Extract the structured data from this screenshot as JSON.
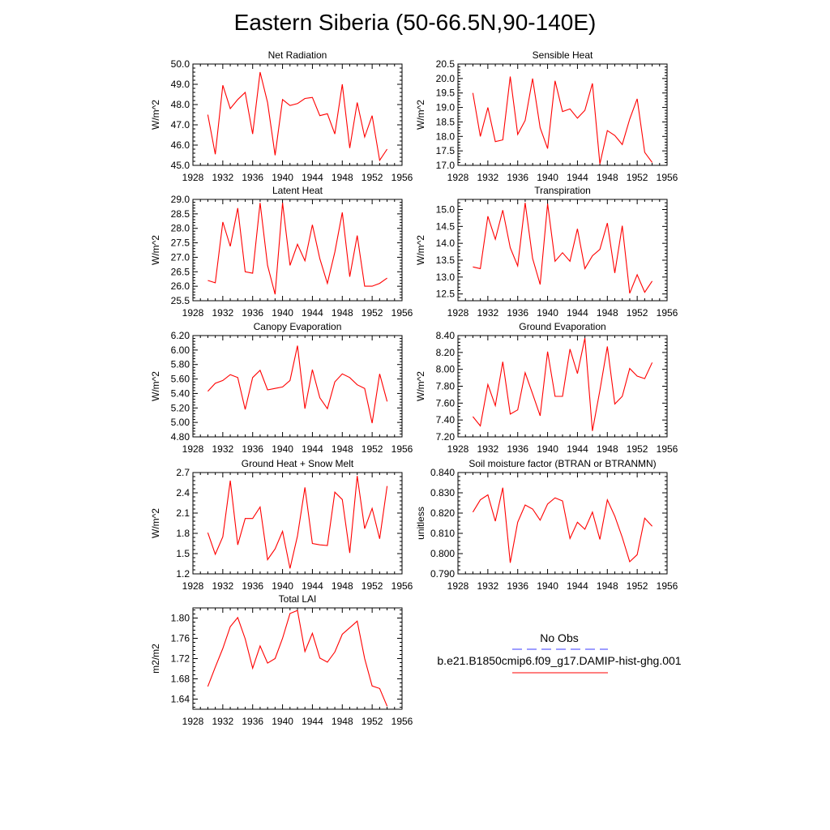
{
  "title": "Eastern Siberia (50-66.5N,90-140E)",
  "colors": {
    "model": "#ff0000",
    "obs": "#3b3bff",
    "axis": "#000000"
  },
  "legend": {
    "obs_label": "No Obs",
    "model_label": "b.e21.B1850cmip6.f09_g17.DAMIP-hist-ghg.001"
  },
  "chart_data": [
    {
      "type": "line",
      "title": "Net Radiation",
      "ylabel": "W/m^2",
      "xlim": [
        1928,
        1956
      ],
      "ylim": [
        45.0,
        50.0
      ],
      "xticks": [
        1928,
        1932,
        1936,
        1940,
        1944,
        1948,
        1952,
        1956
      ],
      "yticks": [
        "45.0",
        "46.0",
        "47.0",
        "48.0",
        "49.0",
        "50.0"
      ],
      "x": [
        1930,
        1931,
        1932,
        1933,
        1934,
        1935,
        1936,
        1937,
        1938,
        1939,
        1940,
        1941,
        1942,
        1943,
        1944,
        1945,
        1946,
        1947,
        1948,
        1949,
        1950,
        1951,
        1952,
        1953,
        1954
      ],
      "series": [
        {
          "values": [
            47.5,
            45.55,
            48.95,
            47.8,
            48.25,
            48.6,
            46.55,
            49.6,
            48.1,
            45.5,
            48.25,
            47.95,
            48.05,
            48.3,
            48.35,
            47.45,
            47.55,
            46.55,
            49.0,
            45.85,
            48.1,
            46.4,
            47.45,
            45.25,
            45.8
          ]
        }
      ]
    },
    {
      "type": "line",
      "title": "Sensible Heat",
      "ylabel": "W/m^2",
      "xlim": [
        1928,
        1956
      ],
      "ylim": [
        17.0,
        20.5
      ],
      "xticks": [
        1928,
        1932,
        1936,
        1940,
        1944,
        1948,
        1952,
        1956
      ],
      "yticks": [
        "17.0",
        "17.5",
        "18.0",
        "18.5",
        "19.0",
        "19.5",
        "20.0",
        "20.5"
      ],
      "x": [
        1930,
        1931,
        1932,
        1933,
        1934,
        1935,
        1936,
        1937,
        1938,
        1939,
        1940,
        1941,
        1942,
        1943,
        1944,
        1945,
        1946,
        1947,
        1948,
        1949,
        1950,
        1951,
        1952,
        1953,
        1954
      ],
      "series": [
        {
          "values": [
            19.5,
            18.0,
            19.0,
            17.82,
            17.88,
            20.07,
            18.07,
            18.55,
            20.0,
            18.3,
            17.58,
            19.92,
            18.86,
            18.95,
            18.63,
            18.9,
            19.83,
            17.05,
            18.2,
            18.03,
            17.72,
            18.6,
            19.3,
            17.45,
            17.1
          ]
        }
      ]
    },
    {
      "type": "line",
      "title": "Latent Heat",
      "ylabel": "W/m^2",
      "xlim": [
        1928,
        1956
      ],
      "ylim": [
        25.5,
        29.0
      ],
      "xticks": [
        1928,
        1932,
        1936,
        1940,
        1944,
        1948,
        1952,
        1956
      ],
      "yticks": [
        "25.5",
        "26.0",
        "26.5",
        "27.0",
        "27.5",
        "28.0",
        "28.5",
        "29.0"
      ],
      "x": [
        1930,
        1931,
        1932,
        1933,
        1934,
        1935,
        1936,
        1937,
        1938,
        1939,
        1940,
        1941,
        1942,
        1943,
        1944,
        1945,
        1946,
        1947,
        1948,
        1949,
        1950,
        1951,
        1952,
        1953,
        1954
      ],
      "series": [
        {
          "values": [
            26.2,
            26.12,
            28.22,
            27.38,
            28.7,
            26.5,
            26.45,
            28.88,
            26.72,
            25.72,
            28.88,
            26.72,
            27.45,
            26.88,
            28.12,
            26.95,
            26.1,
            27.18,
            28.55,
            26.33,
            27.75,
            26.0,
            26.0,
            26.1,
            26.28
          ]
        }
      ]
    },
    {
      "type": "line",
      "title": "Transpiration",
      "ylabel": "W/m^2",
      "xlim": [
        1928,
        1956
      ],
      "ylim": [
        12.3,
        15.3
      ],
      "xticks": [
        1928,
        1932,
        1936,
        1940,
        1944,
        1948,
        1952,
        1956
      ],
      "yticks": [
        "12.5",
        "13.0",
        "13.5",
        "14.0",
        "14.5",
        "15.0"
      ],
      "x": [
        1930,
        1931,
        1932,
        1933,
        1934,
        1935,
        1936,
        1937,
        1938,
        1939,
        1940,
        1941,
        1942,
        1943,
        1944,
        1945,
        1946,
        1947,
        1948,
        1949,
        1950,
        1951,
        1952,
        1953,
        1954
      ],
      "series": [
        {
          "values": [
            13.3,
            13.25,
            14.8,
            14.12,
            14.98,
            13.87,
            13.33,
            15.2,
            13.55,
            12.78,
            15.17,
            13.47,
            13.72,
            13.47,
            14.43,
            13.25,
            13.63,
            13.82,
            14.6,
            13.12,
            14.52,
            12.52,
            13.07,
            12.55,
            12.88
          ]
        }
      ]
    },
    {
      "type": "line",
      "title": "Canopy Evaporation",
      "ylabel": "W/m^2",
      "xlim": [
        1928,
        1956
      ],
      "ylim": [
        4.8,
        6.2
      ],
      "xticks": [
        1928,
        1932,
        1936,
        1940,
        1944,
        1948,
        1952,
        1956
      ],
      "yticks": [
        "4.80",
        "5.00",
        "5.20",
        "5.40",
        "5.60",
        "5.80",
        "6.00",
        "6.20"
      ],
      "x": [
        1930,
        1931,
        1932,
        1933,
        1934,
        1935,
        1936,
        1937,
        1938,
        1939,
        1940,
        1941,
        1942,
        1943,
        1944,
        1945,
        1946,
        1947,
        1948,
        1949,
        1950,
        1951,
        1952,
        1953,
        1954
      ],
      "series": [
        {
          "values": [
            5.43,
            5.54,
            5.58,
            5.66,
            5.62,
            5.18,
            5.62,
            5.72,
            5.45,
            5.47,
            5.49,
            5.58,
            6.06,
            5.19,
            5.73,
            5.34,
            5.19,
            5.56,
            5.67,
            5.62,
            5.52,
            5.47,
            4.99,
            5.67,
            5.29
          ]
        }
      ]
    },
    {
      "type": "line",
      "title": "Ground Evaporation",
      "ylabel": "W/m^2",
      "xlim": [
        1928,
        1956
      ],
      "ylim": [
        7.2,
        8.4
      ],
      "xticks": [
        1928,
        1932,
        1936,
        1940,
        1944,
        1948,
        1952,
        1956
      ],
      "yticks": [
        "7.20",
        "7.40",
        "7.60",
        "7.80",
        "8.00",
        "8.20",
        "8.40"
      ],
      "x": [
        1930,
        1931,
        1932,
        1933,
        1934,
        1935,
        1936,
        1937,
        1938,
        1939,
        1940,
        1941,
        1942,
        1943,
        1944,
        1945,
        1946,
        1947,
        1948,
        1949,
        1950,
        1951,
        1952,
        1953,
        1954
      ],
      "series": [
        {
          "values": [
            7.44,
            7.33,
            7.82,
            7.57,
            8.09,
            7.47,
            7.52,
            7.96,
            7.71,
            7.45,
            8.21,
            7.68,
            7.68,
            8.24,
            7.95,
            8.37,
            7.27,
            7.75,
            8.27,
            7.59,
            7.68,
            8.01,
            7.92,
            7.89,
            8.08
          ]
        }
      ]
    },
    {
      "type": "line",
      "title": "Ground Heat + Snow Melt",
      "ylabel": "W/m^2",
      "xlim": [
        1928,
        1956
      ],
      "ylim": [
        1.2,
        2.7
      ],
      "xticks": [
        1928,
        1932,
        1936,
        1940,
        1944,
        1948,
        1952,
        1956
      ],
      "yticks": [
        "1.2",
        "1.5",
        "1.8",
        "2.1",
        "2.4",
        "2.7"
      ],
      "x": [
        1930,
        1931,
        1932,
        1933,
        1934,
        1935,
        1936,
        1937,
        1938,
        1939,
        1940,
        1941,
        1942,
        1943,
        1944,
        1945,
        1946,
        1947,
        1948,
        1949,
        1950,
        1951,
        1952,
        1953,
        1954
      ],
      "series": [
        {
          "values": [
            1.81,
            1.49,
            1.75,
            2.58,
            1.63,
            2.02,
            2.02,
            2.19,
            1.41,
            1.57,
            1.83,
            1.28,
            1.76,
            2.48,
            1.65,
            1.63,
            1.62,
            2.41,
            2.3,
            1.51,
            2.65,
            1.87,
            2.17,
            1.72,
            2.5
          ]
        }
      ]
    },
    {
      "type": "line",
      "title": "Soil moisture factor (BTRAN or BTRANMN)",
      "ylabel": "unitless",
      "xlim": [
        1928,
        1956
      ],
      "ylim": [
        0.79,
        0.84
      ],
      "xticks": [
        1928,
        1932,
        1936,
        1940,
        1944,
        1948,
        1952,
        1956
      ],
      "yticks": [
        "0.790",
        "0.800",
        "0.810",
        "0.820",
        "0.830",
        "0.840"
      ],
      "x": [
        1930,
        1931,
        1932,
        1933,
        1934,
        1935,
        1936,
        1937,
        1938,
        1939,
        1940,
        1941,
        1942,
        1943,
        1944,
        1945,
        1946,
        1947,
        1948,
        1949,
        1950,
        1951,
        1952,
        1953,
        1954
      ],
      "series": [
        {
          "values": [
            0.8205,
            0.8265,
            0.829,
            0.816,
            0.8325,
            0.7955,
            0.8155,
            0.824,
            0.822,
            0.8165,
            0.8245,
            0.8275,
            0.826,
            0.8075,
            0.8155,
            0.812,
            0.8205,
            0.807,
            0.8265,
            0.8185,
            0.808,
            0.796,
            0.7995,
            0.8175,
            0.8135
          ]
        }
      ]
    },
    {
      "type": "line",
      "title": "Total LAI",
      "ylabel": "m2/m2",
      "xlim": [
        1928,
        1956
      ],
      "ylim": [
        1.62,
        1.82
      ],
      "xticks": [
        1928,
        1932,
        1936,
        1940,
        1944,
        1948,
        1952,
        1956
      ],
      "yticks": [
        "1.64",
        "1.68",
        "1.72",
        "1.76",
        "1.80"
      ],
      "x": [
        1930,
        1931,
        1932,
        1933,
        1934,
        1935,
        1936,
        1937,
        1938,
        1939,
        1940,
        1941,
        1942,
        1943,
        1944,
        1945,
        1946,
        1947,
        1948,
        1949,
        1950,
        1951,
        1952,
        1953,
        1954
      ],
      "series": [
        {
          "values": [
            1.665,
            1.703,
            1.74,
            1.783,
            1.801,
            1.759,
            1.701,
            1.745,
            1.711,
            1.72,
            1.76,
            1.809,
            1.815,
            1.734,
            1.77,
            1.721,
            1.713,
            1.733,
            1.768,
            1.781,
            1.794,
            1.72,
            1.666,
            1.661,
            1.626
          ]
        }
      ]
    }
  ]
}
